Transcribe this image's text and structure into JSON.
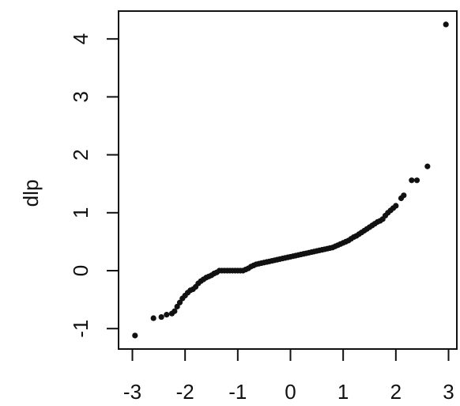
{
  "chart_data": {
    "type": "scatter",
    "title": "",
    "xlabel": "",
    "ylabel": "dlp",
    "xlim": [
      -3.0,
      3.0
    ],
    "ylim": [
      -1.0,
      4.0
    ],
    "x_ticks": [
      -3,
      -2,
      -1,
      0,
      1,
      2,
      3
    ],
    "y_ticks": [
      -1,
      0,
      1,
      2,
      3,
      4
    ],
    "x_tick_labels": [
      "-3",
      "-2",
      "-1",
      "0",
      "1",
      "2",
      "3"
    ],
    "y_tick_labels": [
      "-1",
      "0",
      "1",
      "2",
      "3",
      "4"
    ],
    "grid": false,
    "legend": "none",
    "point_color": "#111111",
    "series": [
      {
        "x": [
          -2.95,
          -2.6,
          -2.45,
          -2.35,
          -2.25,
          -2.2,
          -2.15,
          -2.1,
          -2.05,
          -2.0,
          -1.95,
          -1.9,
          -1.85,
          -1.8,
          -1.75,
          -1.7,
          -1.65,
          -1.6,
          -1.55,
          -1.5,
          -1.45,
          -1.4,
          -1.35,
          -1.3,
          -1.25,
          -1.2,
          -1.15,
          -1.1,
          -1.05,
          -1.0,
          -0.95,
          -0.9,
          -0.85,
          -0.8,
          -0.75,
          -0.7,
          -0.65,
          -0.6,
          -0.55,
          -0.5,
          -0.45,
          -0.4,
          -0.35,
          -0.3,
          -0.25,
          -0.2,
          -0.15,
          -0.1,
          -0.05,
          0.0,
          0.05,
          0.1,
          0.15,
          0.2,
          0.25,
          0.3,
          0.35,
          0.4,
          0.45,
          0.5,
          0.55,
          0.6,
          0.65,
          0.7,
          0.75,
          0.8,
          0.85,
          0.9,
          0.95,
          1.0,
          1.05,
          1.1,
          1.15,
          1.2,
          1.25,
          1.3,
          1.35,
          1.4,
          1.45,
          1.5,
          1.55,
          1.6,
          1.65,
          1.7,
          1.75,
          1.8,
          1.85,
          1.9,
          1.95,
          2.0,
          2.1,
          2.15,
          2.3,
          2.4,
          2.6,
          2.95
        ],
        "y": [
          -1.12,
          -0.82,
          -0.8,
          -0.76,
          -0.74,
          -0.7,
          -0.62,
          -0.55,
          -0.48,
          -0.43,
          -0.38,
          -0.34,
          -0.32,
          -0.28,
          -0.22,
          -0.18,
          -0.15,
          -0.12,
          -0.1,
          -0.08,
          -0.05,
          -0.03,
          0.0,
          0.0,
          0.0,
          0.0,
          0.0,
          0.0,
          0.0,
          0.0,
          0.0,
          0.0,
          0.02,
          0.04,
          0.07,
          0.09,
          0.11,
          0.12,
          0.13,
          0.14,
          0.15,
          0.16,
          0.17,
          0.18,
          0.19,
          0.2,
          0.21,
          0.22,
          0.23,
          0.24,
          0.25,
          0.26,
          0.27,
          0.28,
          0.29,
          0.3,
          0.31,
          0.32,
          0.33,
          0.34,
          0.35,
          0.36,
          0.37,
          0.38,
          0.39,
          0.4,
          0.42,
          0.44,
          0.46,
          0.48,
          0.5,
          0.52,
          0.55,
          0.58,
          0.6,
          0.63,
          0.66,
          0.69,
          0.72,
          0.75,
          0.78,
          0.81,
          0.84,
          0.86,
          0.89,
          0.95,
          1.0,
          1.04,
          1.08,
          1.12,
          1.25,
          1.3,
          1.56,
          1.56,
          1.8,
          4.25
        ]
      }
    ]
  }
}
